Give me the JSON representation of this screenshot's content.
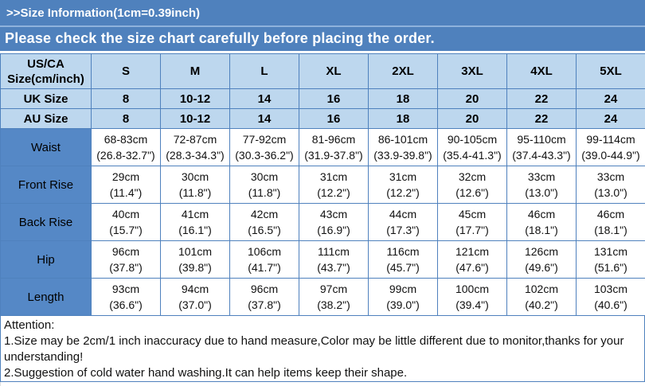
{
  "colors": {
    "banner_blue": "#4F81BD",
    "label_blue": "#5588C6",
    "light_blue": "#BDD7EE",
    "border_blue": "#4F81BD",
    "text_white": "#FFFFFF",
    "text_black": "#000000"
  },
  "banner": {
    "title": ">>Size Information(1cm=0.39inch)",
    "subtitle": "Please check the size chart carefully before placing the order."
  },
  "size_chart": {
    "corner_header": {
      "line1": "US/CA",
      "line2": "Size(cm/inch)"
    },
    "size_headers": [
      "S",
      "M",
      "L",
      "XL",
      "2XL",
      "3XL",
      "4XL",
      "5XL"
    ],
    "size_rows": [
      {
        "label": "UK Size",
        "values": [
          "8",
          "10-12",
          "14",
          "16",
          "18",
          "20",
          "22",
          "24"
        ]
      },
      {
        "label": "AU Size",
        "values": [
          "8",
          "10-12",
          "14",
          "16",
          "18",
          "20",
          "22",
          "24"
        ]
      }
    ],
    "measurement_rows": [
      {
        "label": "Waist",
        "values": [
          {
            "cm": "68-83cm",
            "inch": "(26.8-32.7\")"
          },
          {
            "cm": "72-87cm",
            "inch": "(28.3-34.3\")"
          },
          {
            "cm": "77-92cm",
            "inch": "(30.3-36.2\")"
          },
          {
            "cm": "81-96cm",
            "inch": "(31.9-37.8\")"
          },
          {
            "cm": "86-101cm",
            "inch": "(33.9-39.8\")"
          },
          {
            "cm": "90-105cm",
            "inch": "(35.4-41.3\")"
          },
          {
            "cm": "95-110cm",
            "inch": "(37.4-43.3\")"
          },
          {
            "cm": "99-114cm",
            "inch": "(39.0-44.9\")"
          }
        ]
      },
      {
        "label": "Front Rise",
        "values": [
          {
            "cm": "29cm",
            "inch": "(11.4\")"
          },
          {
            "cm": "30cm",
            "inch": "(11.8\")"
          },
          {
            "cm": "30cm",
            "inch": "(11.8\")"
          },
          {
            "cm": "31cm",
            "inch": "(12.2\")"
          },
          {
            "cm": "31cm",
            "inch": "(12.2\")"
          },
          {
            "cm": "32cm",
            "inch": "(12.6\")"
          },
          {
            "cm": "33cm",
            "inch": "(13.0\")"
          },
          {
            "cm": "33cm",
            "inch": "(13.0\")"
          }
        ]
      },
      {
        "label": "Back Rise",
        "values": [
          {
            "cm": "40cm",
            "inch": "(15.7\")"
          },
          {
            "cm": "41cm",
            "inch": "(16.1\")"
          },
          {
            "cm": "42cm",
            "inch": "(16.5\")"
          },
          {
            "cm": "43cm",
            "inch": "(16.9\")"
          },
          {
            "cm": "44cm",
            "inch": "(17.3\")"
          },
          {
            "cm": "45cm",
            "inch": "(17.7\")"
          },
          {
            "cm": "46cm",
            "inch": "(18.1\")"
          },
          {
            "cm": "46cm",
            "inch": "(18.1\")"
          }
        ]
      },
      {
        "label": "Hip",
        "values": [
          {
            "cm": "96cm",
            "inch": "(37.8\")"
          },
          {
            "cm": "101cm",
            "inch": "(39.8\")"
          },
          {
            "cm": "106cm",
            "inch": "(41.7\")"
          },
          {
            "cm": "111cm",
            "inch": "(43.7\")"
          },
          {
            "cm": "116cm",
            "inch": "(45.7\")"
          },
          {
            "cm": "121cm",
            "inch": "(47.6\")"
          },
          {
            "cm": "126cm",
            "inch": "(49.6\")"
          },
          {
            "cm": "131cm",
            "inch": "(51.6\")"
          }
        ]
      },
      {
        "label": "Length",
        "values": [
          {
            "cm": "93cm",
            "inch": "(36.6\")"
          },
          {
            "cm": "94cm",
            "inch": "(37.0\")"
          },
          {
            "cm": "96cm",
            "inch": "(37.8\")"
          },
          {
            "cm": "97cm",
            "inch": "(38.2\")"
          },
          {
            "cm": "99cm",
            "inch": "(39.0\")"
          },
          {
            "cm": "100cm",
            "inch": "(39.4\")"
          },
          {
            "cm": "102cm",
            "inch": "(40.2\")"
          },
          {
            "cm": "103cm",
            "inch": "(40.6\")"
          }
        ]
      }
    ]
  },
  "attention": {
    "heading": "Attention:",
    "notes": [
      "1.Size may be 2cm/1 inch inaccuracy due to hand measure,Color may be little different due to monitor,thanks for your understanding!",
      "2.Suggestion of cold water hand washing.It can help items keep their shape."
    ]
  }
}
